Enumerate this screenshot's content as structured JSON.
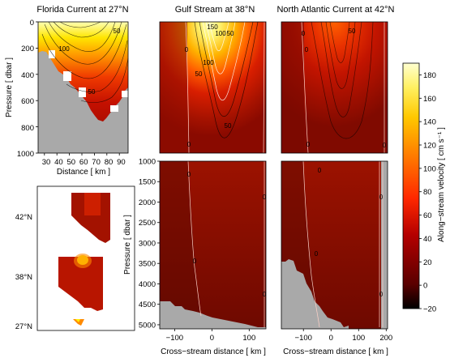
{
  "chart_data": {
    "type": "heatmap",
    "panels": [
      {
        "id": "florida",
        "title": "Florida Current at 27°N",
        "ylabel": "Pressure [ dbar ]",
        "xlabel": "Distance [ km ]",
        "xticks": [
          30,
          40,
          50,
          60,
          70,
          80,
          90
        ],
        "yticks": [
          0,
          200,
          400,
          600,
          800,
          1000
        ],
        "xlim": [
          25,
          97
        ],
        "ylim": [
          0,
          1000
        ],
        "contour_labels": [
          "50",
          "100",
          "50"
        ]
      },
      {
        "id": "gulf_upper",
        "title": "Gulf Stream at 38°N",
        "ylim": [
          0,
          1000
        ],
        "contour_labels": [
          "0",
          "50",
          "100",
          "150",
          "50",
          "100",
          "50",
          "0"
        ]
      },
      {
        "id": "nac_upper",
        "title": "North Atlantic Current at 42°N",
        "ylim": [
          0,
          1000
        ],
        "contour_labels": [
          "0",
          "50",
          "0",
          "0",
          "0"
        ]
      },
      {
        "id": "gulf_lower",
        "ylabel": "Pressure [ dbar ]",
        "xlabel": "Cross−stream distance [ km ]",
        "xticks": [
          -100,
          0,
          100
        ],
        "yticks": [
          1000,
          1500,
          2000,
          2500,
          3000,
          3500,
          4000,
          4500,
          5000
        ],
        "xlim": [
          -140,
          145
        ],
        "ylim": [
          1000,
          5100
        ],
        "contour_labels": [
          "0",
          "0",
          "0",
          "0"
        ]
      },
      {
        "id": "nac_lower",
        "xlabel": "Cross−stream distance [ km ]",
        "xticks": [
          -100,
          0,
          100,
          200
        ],
        "xlim": [
          -180,
          205
        ],
        "ylim": [
          1000,
          5100
        ],
        "contour_labels": [
          "0",
          "0",
          "0",
          "0"
        ]
      }
    ],
    "inset_labels": [
      "42°N",
      "38°N",
      "27°N"
    ],
    "colorbar": {
      "label": "Along−stream velocity [ cm s⁻¹ ]",
      "ticks": [
        -20,
        0,
        20,
        40,
        60,
        80,
        100,
        120,
        140,
        160,
        180
      ],
      "range": [
        -20,
        190
      ],
      "colormap": "hot"
    }
  }
}
